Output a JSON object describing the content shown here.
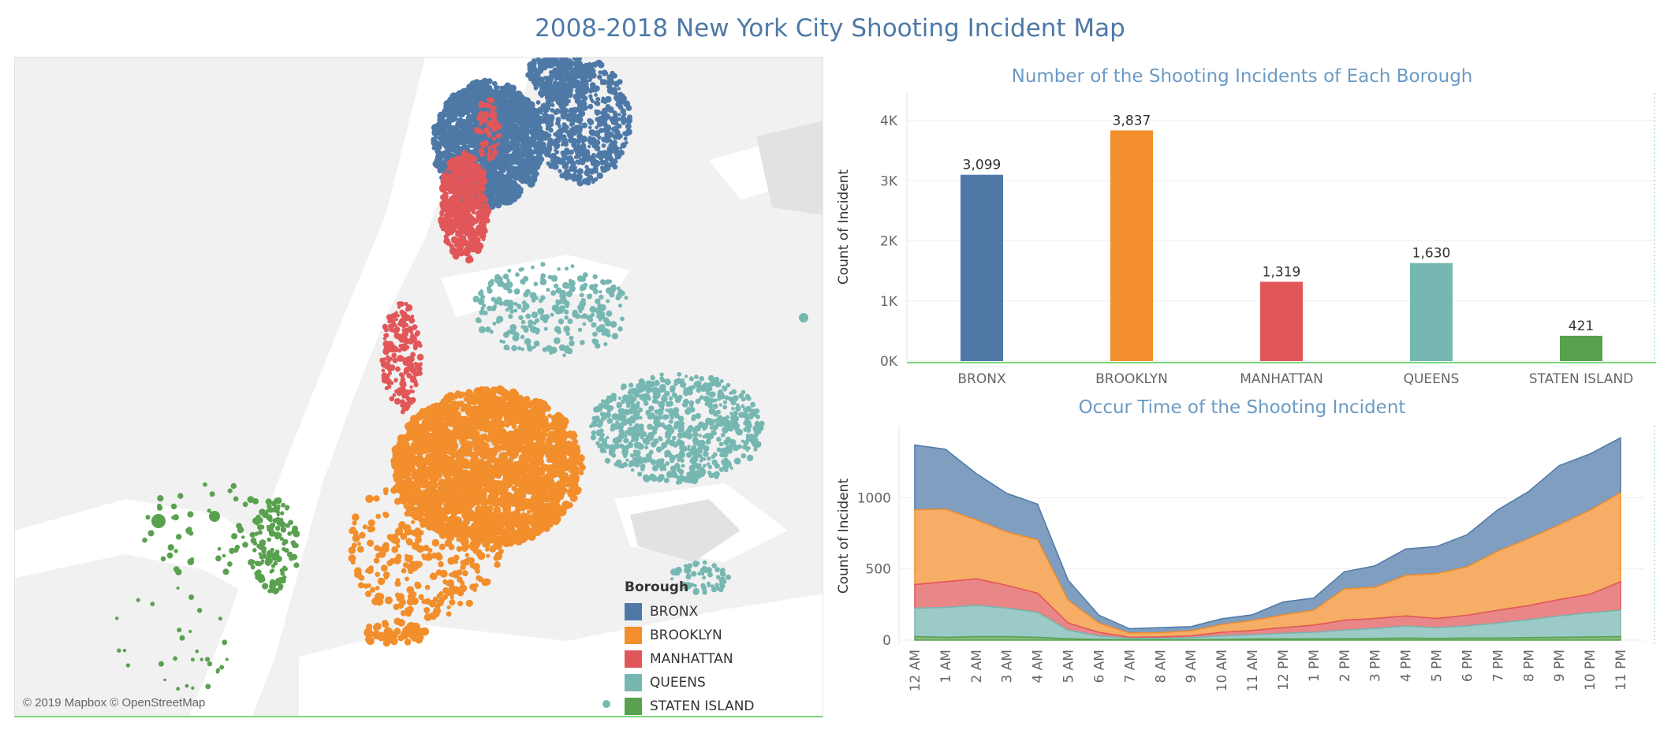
{
  "page": {
    "title": "2008-2018 New York City Shooting Incident Map"
  },
  "map": {
    "attribution": "© 2019 Mapbox © OpenStreetMap",
    "legend_title": "Borough",
    "legend": [
      {
        "label": "BRONX",
        "color": "#4e79a7"
      },
      {
        "label": "BROOKLYN",
        "color": "#f28e2b"
      },
      {
        "label": "MANHATTAN",
        "color": "#e15759"
      },
      {
        "label": "QUEENS",
        "color": "#76b7b2"
      },
      {
        "label": "STATEN ISLAND",
        "color": "#59a14f"
      }
    ]
  },
  "colors": {
    "bronx": "#4e79a7",
    "brooklyn": "#f28e2b",
    "manhattan": "#e15759",
    "queens": "#76b7b2",
    "staten_island": "#59a14f",
    "title": "#4e79a7",
    "chart_title": "#6b9ac4"
  },
  "chart_data": [
    {
      "type": "bar",
      "title": "Number of the Shooting Incidents of Each Borough",
      "ylabel": "Count of Incident",
      "xlabel": "",
      "categories": [
        "BRONX",
        "BROOKLYN",
        "MANHATTAN",
        "QUEENS",
        "STATEN ISLAND"
      ],
      "values": [
        3099,
        3837,
        1319,
        1630,
        421
      ],
      "value_labels": [
        "3,099",
        "3,837",
        "1,319",
        "1,630",
        "421"
      ],
      "colors": [
        "#4e79a7",
        "#f28e2b",
        "#e15759",
        "#76b7b2",
        "#59a14f"
      ],
      "y_ticks": [
        0,
        1000,
        2000,
        3000,
        4000
      ],
      "y_tick_labels": [
        "0K",
        "1K",
        "2K",
        "3K",
        "4K"
      ],
      "ylim": [
        0,
        4000
      ],
      "grid": true
    },
    {
      "type": "area",
      "stacked": true,
      "title": "Occur Time of the Shooting Incident",
      "ylabel": "Count of Incident",
      "xlabel": "",
      "x": [
        "12 AM",
        "1 AM",
        "2 AM",
        "3 AM",
        "4 AM",
        "5 AM",
        "6 AM",
        "7 AM",
        "8 AM",
        "9 AM",
        "10 AM",
        "11 AM",
        "12 PM",
        "1 PM",
        "2 PM",
        "3 PM",
        "4 PM",
        "5 PM",
        "6 PM",
        "7 PM",
        "8 PM",
        "9 PM",
        "10 PM",
        "11 PM"
      ],
      "series": [
        {
          "name": "STATEN ISLAND",
          "color": "#59a14f",
          "values": [
            25,
            20,
            25,
            25,
            20,
            10,
            5,
            3,
            3,
            3,
            5,
            8,
            8,
            10,
            10,
            12,
            15,
            12,
            15,
            15,
            18,
            20,
            22,
            25
          ]
        },
        {
          "name": "QUEENS",
          "color": "#76b7b2",
          "values": [
            200,
            210,
            220,
            200,
            175,
            60,
            25,
            10,
            10,
            15,
            25,
            30,
            40,
            45,
            60,
            70,
            85,
            75,
            85,
            105,
            125,
            150,
            170,
            185
          ]
        },
        {
          "name": "MANHATTAN",
          "color": "#e15759",
          "values": [
            165,
            180,
            185,
            160,
            135,
            50,
            25,
            7,
            10,
            12,
            25,
            30,
            40,
            50,
            70,
            70,
            70,
            65,
            75,
            90,
            100,
            115,
            130,
            200
          ]
        },
        {
          "name": "BROOKLYN",
          "color": "#f28e2b",
          "values": [
            525,
            510,
            415,
            375,
            375,
            160,
            65,
            30,
            30,
            35,
            55,
            70,
            90,
            105,
            220,
            220,
            285,
            315,
            340,
            415,
            470,
            525,
            590,
            625
          ]
        },
        {
          "name": "BRONX",
          "color": "#4e79a7",
          "values": [
            455,
            420,
            325,
            270,
            250,
            140,
            55,
            30,
            35,
            30,
            40,
            40,
            90,
            85,
            120,
            150,
            185,
            190,
            225,
            290,
            330,
            415,
            395,
            385
          ]
        }
      ],
      "y_ticks": [
        0,
        500,
        1000
      ],
      "y_tick_labels": [
        "0",
        "500",
        "1000"
      ],
      "ylim": [
        0,
        1450
      ],
      "grid": true
    }
  ]
}
